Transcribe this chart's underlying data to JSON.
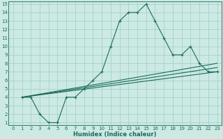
{
  "xlabel": "Humidex (Indice chaleur)",
  "bg_color": "#cce9e4",
  "line_color": "#1a6b5a",
  "grid_color": "#9ecdc6",
  "xlim_min": 0,
  "xlim_max": 23,
  "ylim_min": 1,
  "ylim_max": 15,
  "main_x": [
    1,
    2,
    3,
    4,
    5,
    5,
    6,
    7,
    8,
    9,
    10,
    11,
    12,
    13,
    14,
    15,
    16,
    17,
    18,
    19,
    20,
    21,
    22,
    23
  ],
  "main_y": [
    4,
    4,
    2,
    1,
    1,
    1,
    4,
    4,
    5,
    6,
    7,
    10,
    13,
    14,
    14,
    15,
    13,
    11,
    9,
    9,
    10,
    8,
    7,
    7
  ],
  "ref_line1_x": [
    1,
    23
  ],
  "ref_line1_y": [
    4,
    7
  ],
  "ref_line2_x": [
    1,
    23
  ],
  "ref_line2_y": [
    4,
    7.5
  ],
  "ref_line3_x": [
    1,
    23
  ],
  "ref_line3_y": [
    4,
    8
  ],
  "xticks": [
    0,
    1,
    2,
    3,
    4,
    5,
    6,
    7,
    8,
    9,
    10,
    11,
    12,
    13,
    14,
    15,
    16,
    17,
    18,
    19,
    20,
    21,
    22,
    23
  ],
  "yticks": [
    1,
    2,
    3,
    4,
    5,
    6,
    7,
    8,
    9,
    10,
    11,
    12,
    13,
    14,
    15
  ],
  "tick_fontsize": 5,
  "xlabel_fontsize": 6,
  "linewidth": 0.8,
  "marker_size": 3.0
}
